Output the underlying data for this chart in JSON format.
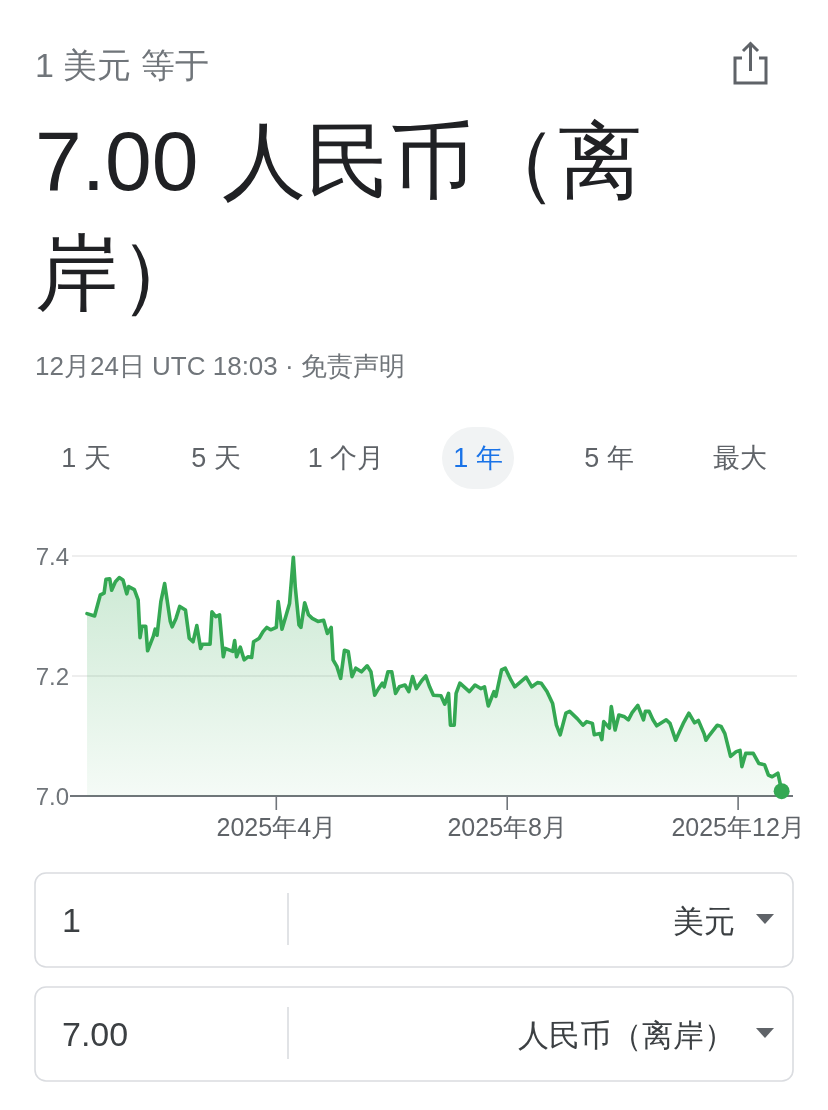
{
  "chart_data": {
    "type": "area",
    "subtitle": "1 美元 等于",
    "title": "7.00 人民币（离岸）",
    "annotations": [
      "12月24日 UTC 18:03 · 免责声明",
      "1 天",
      "5 天",
      "1 个月",
      "1 年",
      "5 年",
      "最大",
      "1",
      "美元",
      "7.00",
      "人民币（离岸）"
    ],
    "xlim": [
      "2024-12-13",
      "2025-12-30"
    ],
    "xticks": [
      {
        "value": "2025-04-01",
        "label": "2025年4月"
      },
      {
        "value": "2025-08-01",
        "label": "2025年8月"
      },
      {
        "value": "2025-12-01",
        "label": "2025年12月"
      }
    ],
    "ylim": [
      7.0,
      7.4
    ],
    "yticks": [
      {
        "value": 7.0,
        "label": "7.0"
      },
      7.2,
      7.4
    ],
    "grid": "y",
    "series": [
      {
        "color": "#34a853",
        "x": [
          "2024-12-22",
          "2024-12-26",
          "2024-12-29",
          "2024-12-31",
          "2025-01-01",
          "2025-01-03",
          "2025-01-04",
          "2025-01-06",
          "2025-01-08",
          "2025-01-10",
          "2025-01-12",
          "2025-01-13",
          "2025-01-16",
          "2025-01-18",
          "2025-01-19",
          "2025-01-20",
          "2025-01-22",
          "2025-01-23",
          "2025-01-26",
          "2025-01-27",
          "2025-01-28",
          "2025-01-30",
          "2025-02-01",
          "2025-02-04",
          "2025-02-05",
          "2025-02-07",
          "2025-02-09",
          "2025-02-12",
          "2025-02-14",
          "2025-02-16",
          "2025-02-18",
          "2025-02-20",
          "2025-02-21",
          "2025-02-25",
          "2025-02-26",
          "2025-02-28",
          "2025-03-02",
          "2025-03-04",
          "2025-03-05",
          "2025-03-09",
          "2025-03-10",
          "2025-03-11",
          "2025-03-13",
          "2025-03-15",
          "2025-03-17",
          "2025-03-19",
          "2025-03-20",
          "2025-03-23",
          "2025-03-25",
          "2025-03-27",
          "2025-03-29",
          "2025-04-01",
          "2025-04-02",
          "2025-04-04",
          "2025-04-06",
          "2025-04-08",
          "2025-04-10",
          "2025-04-11",
          "2025-04-13",
          "2025-04-14",
          "2025-04-16",
          "2025-04-18",
          "2025-04-20",
          "2025-04-23",
          "2025-04-26",
          "2025-04-28",
          "2025-04-30",
          "2025-05-01",
          "2025-05-03",
          "2025-05-05",
          "2025-05-07",
          "2025-05-09",
          "2025-05-11",
          "2025-05-13",
          "2025-05-16",
          "2025-05-19",
          "2025-05-21",
          "2025-05-23",
          "2025-05-25",
          "2025-05-27",
          "2025-05-28",
          "2025-05-30",
          "2025-06-01",
          "2025-06-03",
          "2025-06-05",
          "2025-06-08",
          "2025-06-10",
          "2025-06-12",
          "2025-06-14",
          "2025-06-17",
          "2025-06-19",
          "2025-06-21",
          "2025-06-23",
          "2025-06-27",
          "2025-06-29",
          "2025-07-01",
          "2025-07-02",
          "2025-07-04",
          "2025-07-05",
          "2025-07-07",
          "2025-07-12",
          "2025-07-15",
          "2025-07-18",
          "2025-07-20",
          "2025-07-22",
          "2025-07-25",
          "2025-07-26",
          "2025-07-29",
          "2025-07-31",
          "2025-08-03",
          "2025-08-05",
          "2025-08-11",
          "2025-08-14",
          "2025-08-17",
          "2025-08-19",
          "2025-08-22",
          "2025-08-25",
          "2025-08-27",
          "2025-08-29",
          "2025-09-01",
          "2025-09-03",
          "2025-09-07",
          "2025-09-10",
          "2025-09-12",
          "2025-09-15",
          "2025-09-16",
          "2025-09-19",
          "2025-09-20",
          "2025-09-21",
          "2025-09-24",
          "2025-09-25",
          "2025-09-27",
          "2025-09-29",
          "2025-10-02",
          "2025-10-04",
          "2025-10-06",
          "2025-10-09",
          "2025-10-12",
          "2025-10-13",
          "2025-10-15",
          "2025-10-17",
          "2025-10-19",
          "2025-10-24",
          "2025-10-26",
          "2025-10-29",
          "2025-10-31",
          "2025-11-02",
          "2025-11-05",
          "2025-11-08",
          "2025-11-10",
          "2025-11-13",
          "2025-11-14",
          "2025-11-16",
          "2025-11-20",
          "2025-11-22",
          "2025-11-24",
          "2025-11-27",
          "2025-11-30",
          "2025-12-02",
          "2025-12-03",
          "2025-12-05",
          "2025-12-09",
          "2025-12-12",
          "2025-12-15",
          "2025-12-17",
          "2025-12-19",
          "2025-12-22",
          "2025-12-23",
          "2025-12-24"
        ],
        "values": [
          7.304,
          7.3,
          7.335,
          7.338,
          7.361,
          7.362,
          7.343,
          7.357,
          7.364,
          7.36,
          7.337,
          7.349,
          7.344,
          7.327,
          7.264,
          7.283,
          7.283,
          7.242,
          7.266,
          7.278,
          7.268,
          7.324,
          7.354,
          7.291,
          7.282,
          7.296,
          7.316,
          7.31,
          7.263,
          7.257,
          7.284,
          7.246,
          7.253,
          7.253,
          7.307,
          7.299,
          7.302,
          7.232,
          7.246,
          7.241,
          7.259,
          7.232,
          7.248,
          7.227,
          7.232,
          7.231,
          7.257,
          7.263,
          7.274,
          7.281,
          7.277,
          7.281,
          7.324,
          7.278,
          7.299,
          7.321,
          7.398,
          7.349,
          7.285,
          7.281,
          7.322,
          7.302,
          7.296,
          7.291,
          7.293,
          7.271,
          7.281,
          7.227,
          7.216,
          7.196,
          7.243,
          7.241,
          7.199,
          7.213,
          7.207,
          7.217,
          7.207,
          7.168,
          7.179,
          7.188,
          7.182,
          7.207,
          7.207,
          7.171,
          7.182,
          7.185,
          7.174,
          7.199,
          7.179,
          7.193,
          7.2,
          7.182,
          7.168,
          7.167,
          7.153,
          7.171,
          7.118,
          7.118,
          7.171,
          7.188,
          7.174,
          7.185,
          7.179,
          7.182,
          7.15,
          7.174,
          7.166,
          7.21,
          7.213,
          7.193,
          7.182,
          7.198,
          7.182,
          7.189,
          7.188,
          7.174,
          7.154,
          7.118,
          7.102,
          7.138,
          7.141,
          7.129,
          7.118,
          7.124,
          7.121,
          7.102,
          7.104,
          7.094,
          7.124,
          7.113,
          7.149,
          7.11,
          7.135,
          7.132,
          7.127,
          7.139,
          7.151,
          7.127,
          7.141,
          7.141,
          7.127,
          7.117,
          7.127,
          7.121,
          7.093,
          7.107,
          7.121,
          7.138,
          7.122,
          7.126,
          7.104,
          7.093,
          7.102,
          7.118,
          7.116,
          7.104,
          7.066,
          7.074,
          7.076,
          7.049,
          7.071,
          7.071,
          7.054,
          7.052,
          7.035,
          7.032,
          7.038,
          7.024,
          7.008
        ]
      },
      {
        "type": "scatter",
        "color": "#34a853",
        "x": [
          "2025-12-24"
        ],
        "values": [
          7.008
        ]
      }
    ]
  }
}
